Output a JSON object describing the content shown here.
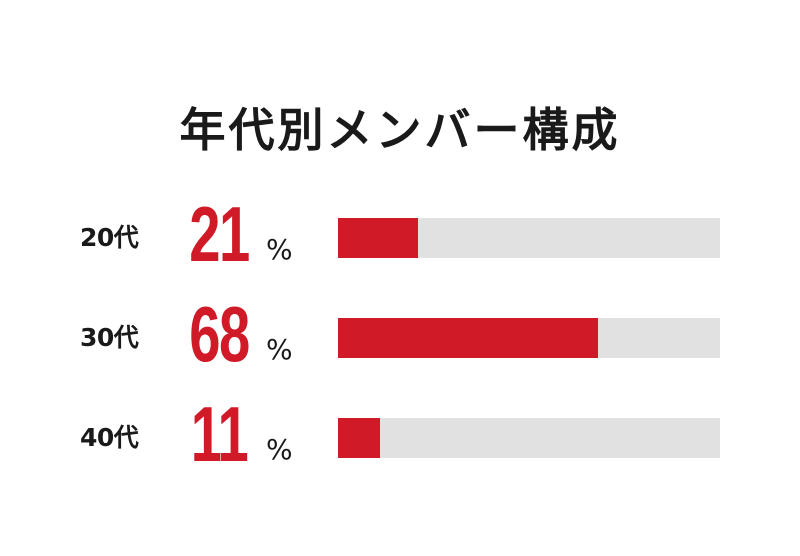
{
  "title": "年代別メンバー構成",
  "colors": {
    "accent": "#d11a27",
    "track": "#e1e1e1",
    "text": "#1a1a1a"
  },
  "chart_data": {
    "type": "bar",
    "orientation": "horizontal",
    "title": "年代別メンバー構成",
    "categories": [
      "20代",
      "30代",
      "40代"
    ],
    "values": [
      21,
      68,
      11
    ],
    "unit": "%",
    "xlim": [
      0,
      100
    ],
    "grid": false,
    "legend": "none",
    "labels": [
      "21",
      "68",
      "11"
    ]
  }
}
